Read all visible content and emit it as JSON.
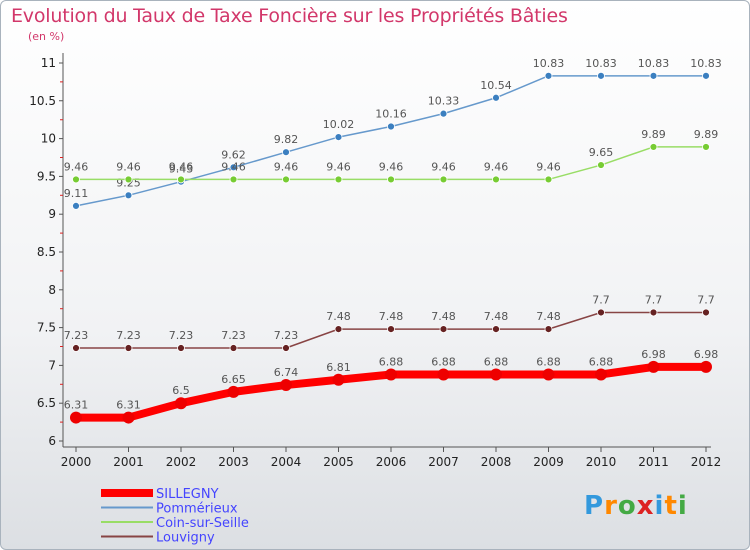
{
  "chart_data": {
    "type": "line",
    "title": "Evolution du Taux de Taxe Foncière sur les Propriétés Bâties",
    "subtitle": "(en %)",
    "categories": [
      "2000",
      "2001",
      "2002",
      "2003",
      "2004",
      "2005",
      "2006",
      "2007",
      "2008",
      "2009",
      "2010",
      "2011",
      "2012"
    ],
    "ylim": [
      6,
      11
    ],
    "yticks": [
      6,
      6.5,
      7,
      7.5,
      8,
      8.5,
      9,
      9.5,
      10,
      10.5,
      11
    ],
    "ytick_labels": [
      "6",
      "6.5",
      "7",
      "7.5",
      "8",
      "8.5",
      "9",
      "9.5",
      "10",
      "10.5",
      "11"
    ],
    "grid": false,
    "legend_position": "bottom-left",
    "series": [
      {
        "name": "SILLEGNY",
        "color": "#ff0000",
        "marker_color": "#ee0000",
        "emphasis": true,
        "values": [
          6.31,
          6.31,
          6.5,
          6.65,
          6.74,
          6.81,
          6.88,
          6.88,
          6.88,
          6.88,
          6.88,
          6.98,
          6.98
        ],
        "labels": [
          "6.31",
          "6.31",
          "6.5",
          "6.65",
          "6.74",
          "6.81",
          "6.88",
          "6.88",
          "6.88",
          "6.88",
          "6.88",
          "6.98",
          "6.98"
        ]
      },
      {
        "name": "Pommérieux",
        "color": "#6699cc",
        "marker_color": "#3b7fc0",
        "emphasis": false,
        "values": [
          9.11,
          9.25,
          9.43,
          9.62,
          9.82,
          10.02,
          10.16,
          10.33,
          10.54,
          10.83,
          10.83,
          10.83,
          10.83
        ],
        "labels": [
          "9.11",
          "9.25",
          "9.43",
          "9.62",
          "9.82",
          "10.02",
          "10.16",
          "10.33",
          "10.54",
          "10.83",
          "10.83",
          "10.83",
          "10.83"
        ]
      },
      {
        "name": "Coin-sur-Seille",
        "color": "#99dd66",
        "marker_color": "#77cc33",
        "emphasis": false,
        "values": [
          9.46,
          9.46,
          9.46,
          9.46,
          9.46,
          9.46,
          9.46,
          9.46,
          9.46,
          9.46,
          9.65,
          9.89,
          9.89
        ],
        "labels": [
          "9.46",
          "9.46",
          "9.46",
          "9.46",
          "9.46",
          "9.46",
          "9.46",
          "9.46",
          "9.46",
          "9.46",
          "9.65",
          "9.89",
          "9.89"
        ]
      },
      {
        "name": "Louvigny",
        "color": "#884444",
        "marker_color": "#662222",
        "emphasis": false,
        "values": [
          7.23,
          7.23,
          7.23,
          7.23,
          7.23,
          7.48,
          7.48,
          7.48,
          7.48,
          7.48,
          7.7,
          7.7,
          7.7
        ],
        "labels": [
          "7.23",
          "7.23",
          "7.23",
          "7.23",
          "7.23",
          "7.48",
          "7.48",
          "7.48",
          "7.48",
          "7.48",
          "7.7",
          "7.7",
          "7.7"
        ]
      }
    ]
  },
  "legend_text_color": "#4444ff",
  "logo": {
    "letters": [
      "P",
      "r",
      "o",
      "x",
      "i",
      "t",
      "i"
    ],
    "colors": [
      "#3399dd",
      "#ff8800",
      "#44aa44",
      "#dd2222",
      "#3399dd",
      "#ff8800",
      "#44aa44"
    ]
  }
}
